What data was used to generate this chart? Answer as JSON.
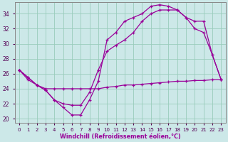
{
  "xlabel": "Windchill (Refroidissement éolien,°C)",
  "bg_color": "#cce8e8",
  "line_color": "#990099",
  "grid_color": "#99ccbb",
  "xlim": [
    -0.5,
    23.5
  ],
  "ylim": [
    19.5,
    35.5
  ],
  "yticks": [
    20,
    22,
    24,
    26,
    28,
    30,
    32,
    34
  ],
  "xticks": [
    0,
    1,
    2,
    3,
    4,
    5,
    6,
    7,
    8,
    9,
    10,
    11,
    12,
    13,
    14,
    15,
    16,
    17,
    18,
    19,
    20,
    21,
    22,
    23
  ],
  "line1_x": [
    0,
    1,
    2,
    3,
    4,
    5,
    6,
    7,
    8,
    9,
    10,
    11,
    12,
    13,
    14,
    15,
    16,
    17,
    18,
    19,
    20,
    21,
    22,
    23
  ],
  "line1_y": [
    26.5,
    25.2,
    24.5,
    24.0,
    24.0,
    24.0,
    24.0,
    24.0,
    24.0,
    24.0,
    24.2,
    24.3,
    24.5,
    24.5,
    24.6,
    24.7,
    24.8,
    24.9,
    25.0,
    25.0,
    25.1,
    25.1,
    25.2,
    25.2
  ],
  "line2_x": [
    0,
    1,
    2,
    3,
    4,
    5,
    6,
    7,
    8,
    9,
    10,
    11,
    12,
    13,
    14,
    15,
    16,
    17,
    18,
    19,
    20,
    21,
    22,
    23
  ],
  "line2_y": [
    26.5,
    25.5,
    24.5,
    23.8,
    22.5,
    22.0,
    21.8,
    21.8,
    23.5,
    26.5,
    29.0,
    29.8,
    30.5,
    31.5,
    33.0,
    34.0,
    34.5,
    34.5,
    34.5,
    33.5,
    33.0,
    33.0,
    28.5,
    25.2
  ],
  "line3_x": [
    0,
    1,
    2,
    3,
    4,
    5,
    6,
    7,
    8,
    9,
    10,
    11,
    12,
    13,
    14,
    15,
    16,
    17,
    18,
    19,
    20,
    21,
    22,
    23
  ],
  "line3_y": [
    26.5,
    25.5,
    24.5,
    23.8,
    22.5,
    21.5,
    20.5,
    20.5,
    22.5,
    25.0,
    30.5,
    31.5,
    33.0,
    33.5,
    34.0,
    35.0,
    35.2,
    35.0,
    34.5,
    33.5,
    32.0,
    31.5,
    28.5,
    25.2
  ]
}
